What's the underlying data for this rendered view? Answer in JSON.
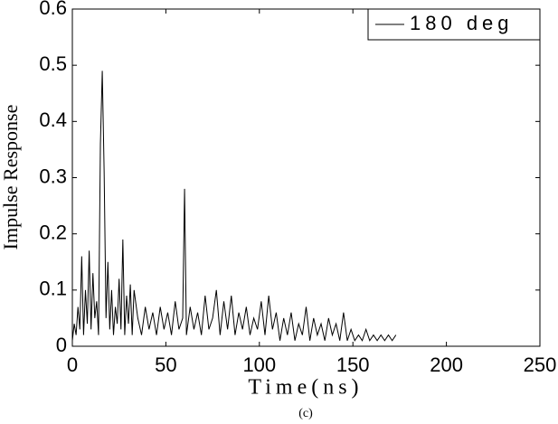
{
  "chart_data": {
    "type": "line",
    "x_label": "Time(ns)",
    "y_label": "Impulse Response",
    "caption": "(c)",
    "x": [
      0,
      1,
      2,
      3,
      4,
      5,
      6,
      7,
      8,
      9,
      10,
      11,
      12,
      13,
      14,
      15,
      16,
      17,
      18,
      19,
      20,
      21,
      22,
      23,
      24,
      25,
      26,
      27,
      28,
      29,
      30,
      31,
      32,
      33,
      35,
      37,
      39,
      41,
      43,
      45,
      47,
      49,
      51,
      53,
      55,
      57,
      59,
      60,
      61,
      63,
      65,
      67,
      69,
      71,
      73,
      75,
      77,
      79,
      81,
      83,
      85,
      87,
      89,
      91,
      93,
      95,
      97,
      99,
      101,
      103,
      105,
      107,
      109,
      111,
      113,
      115,
      117,
      119,
      121,
      123,
      125,
      127,
      129,
      131,
      133,
      135,
      137,
      139,
      141,
      143,
      145,
      147,
      149,
      151,
      153,
      155,
      157,
      159,
      161,
      163,
      165,
      167,
      169,
      171,
      173
    ],
    "series": [
      {
        "name": "180 deg",
        "color": "#000000",
        "values": [
          0.01,
          0.04,
          0.02,
          0.07,
          0.03,
          0.16,
          0.02,
          0.1,
          0.04,
          0.17,
          0.03,
          0.13,
          0.05,
          0.08,
          0.02,
          0.36,
          0.49,
          0.31,
          0.05,
          0.15,
          0.03,
          0.1,
          0.02,
          0.07,
          0.04,
          0.12,
          0.03,
          0.19,
          0.02,
          0.09,
          0.04,
          0.11,
          0.02,
          0.1,
          0.05,
          0.02,
          0.07,
          0.03,
          0.06,
          0.02,
          0.07,
          0.03,
          0.06,
          0.02,
          0.08,
          0.03,
          0.05,
          0.28,
          0.02,
          0.07,
          0.03,
          0.06,
          0.02,
          0.09,
          0.03,
          0.05,
          0.1,
          0.02,
          0.08,
          0.03,
          0.09,
          0.02,
          0.06,
          0.03,
          0.07,
          0.02,
          0.05,
          0.03,
          0.08,
          0.02,
          0.09,
          0.03,
          0.06,
          0.01,
          0.05,
          0.02,
          0.06,
          0.01,
          0.04,
          0.02,
          0.07,
          0.01,
          0.05,
          0.02,
          0.04,
          0.01,
          0.05,
          0.02,
          0.04,
          0.01,
          0.06,
          0.01,
          0.03,
          0.01,
          0.02,
          0.01,
          0.03,
          0.01,
          0.02,
          0.01,
          0.02,
          0.01,
          0.02,
          0.01,
          0.02
        ]
      }
    ],
    "xlim": [
      0,
      250
    ],
    "xticks": [
      0,
      50,
      100,
      150,
      200,
      250
    ],
    "ylim": [
      0,
      0.6
    ],
    "yticks": [
      0,
      0.1,
      0.2,
      0.3,
      0.4,
      0.5,
      0.6
    ],
    "legend": "upper right",
    "grid": false
  }
}
